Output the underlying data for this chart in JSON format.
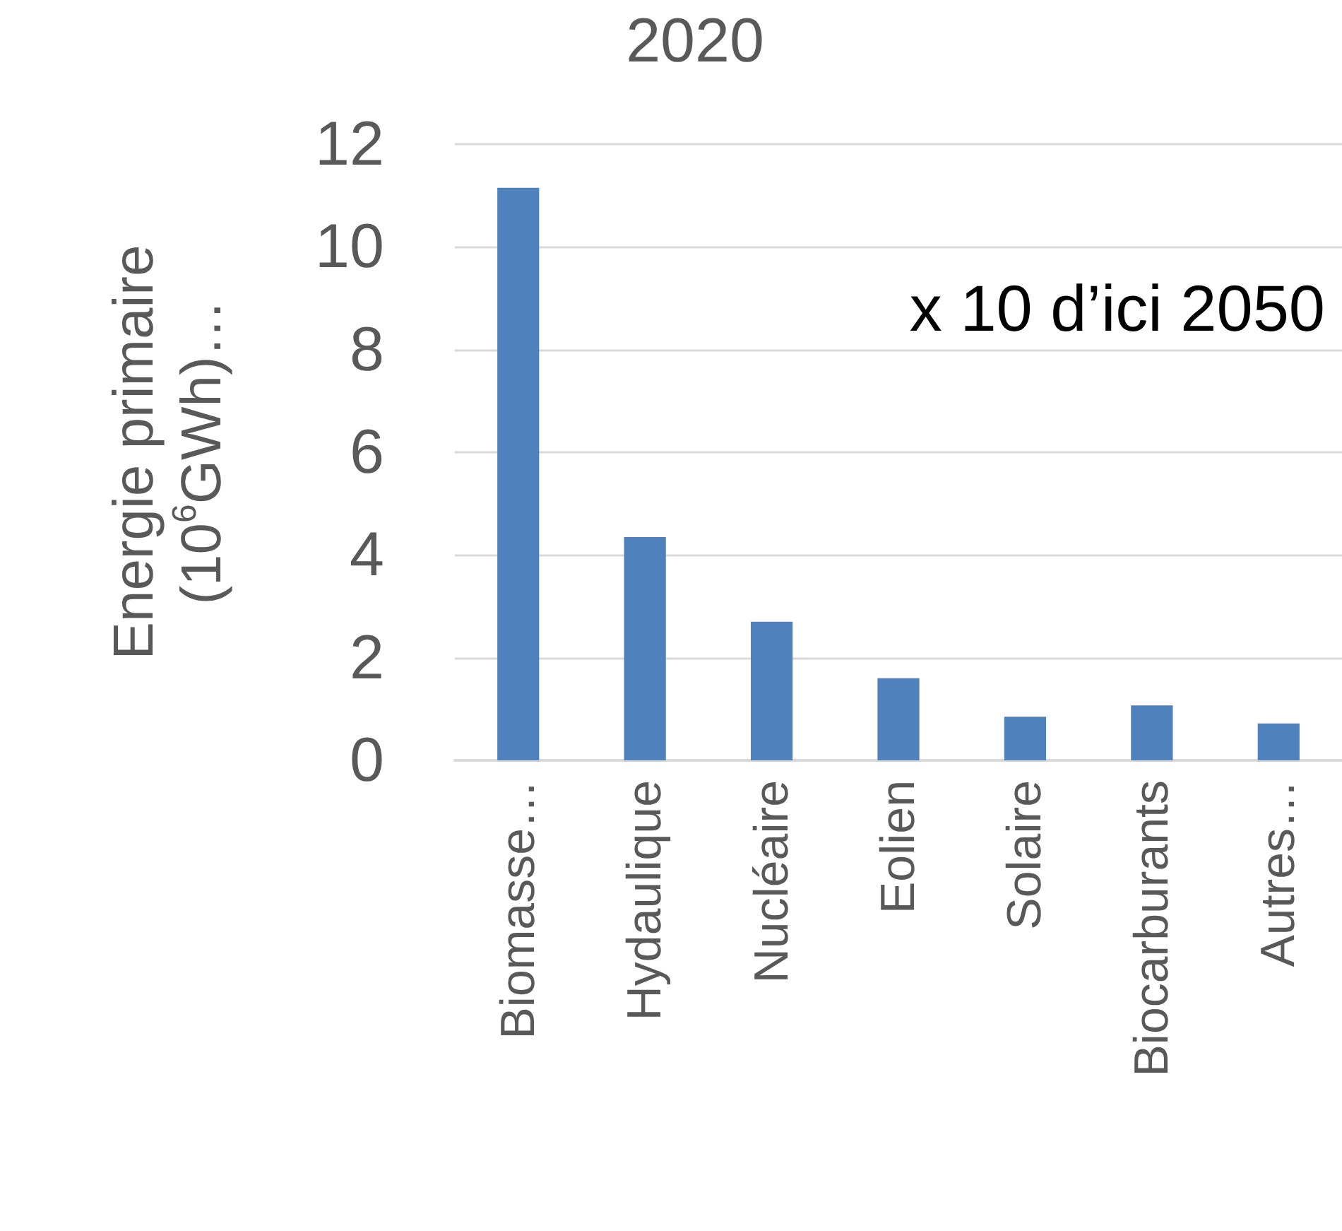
{
  "chart_data": {
    "type": "bar",
    "title": "2020",
    "ylabel": "Energie primaire\n(10$^{6}$GWh)…",
    "categories": [
      "Biomasse…",
      "Hydaulique",
      "Nucléaire",
      "Eolien",
      "Solaire",
      "Biocarburants",
      "Autres…"
    ],
    "values": [
      11.15,
      4.35,
      2.7,
      1.6,
      0.85,
      1.07,
      0.72
    ],
    "color": "#4f81bd",
    "ylim": [
      0,
      12
    ],
    "yticks": [
      0,
      2,
      4,
      6,
      8,
      10,
      12
    ],
    "grid": "y",
    "annotations": [
      "x 10 d’ici 2050"
    ]
  }
}
